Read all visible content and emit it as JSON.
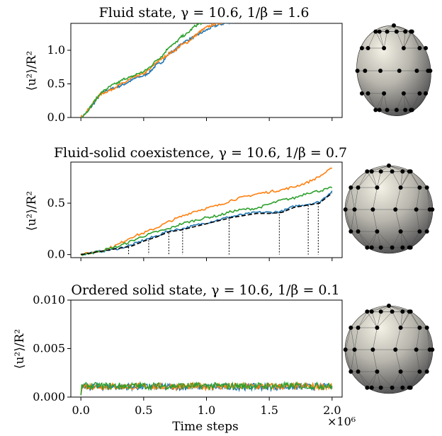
{
  "figure": {
    "xlabel": "Time steps",
    "x_multiplier": "×10⁶"
  },
  "colors": {
    "blue": "#1f77b4",
    "orange": "#ff7f0e",
    "green": "#2ca02c",
    "dashed": "#000000"
  },
  "chart_data": [
    {
      "type": "line",
      "title": "Fluid state, γ = 10.6, 1/β = 1.6",
      "xlabel": "",
      "ylabel": "⟨u²⟩/R²",
      "xlim": [
        0,
        2.0
      ],
      "ylim": [
        0,
        1.4
      ],
      "y_ticks": [
        "0.0",
        "0.5",
        "1.0"
      ],
      "y_tick_values": [
        0,
        0.5,
        1.0
      ],
      "x_tick_labels_shown": false,
      "x": [
        0,
        0.05,
        0.1,
        0.15,
        0.2,
        0.25,
        0.3,
        0.35,
        0.4,
        0.45,
        0.5,
        0.55,
        0.6,
        0.65,
        0.7,
        0.75,
        0.8,
        0.85,
        0.9,
        0.95,
        1.0,
        1.05,
        1.1,
        1.15,
        1.2,
        1.25,
        1.3
      ],
      "series": [
        {
          "color": "blue",
          "values": [
            0,
            0.08,
            0.2,
            0.33,
            0.4,
            0.43,
            0.46,
            0.5,
            0.55,
            0.6,
            0.62,
            0.68,
            0.78,
            0.83,
            0.95,
            1.0,
            1.1,
            1.15,
            1.2,
            1.25,
            1.3,
            1.35,
            1.38,
            1.4,
            1.42,
            1.45,
            1.48
          ]
        },
        {
          "color": "orange",
          "values": [
            0,
            0.1,
            0.22,
            0.34,
            0.38,
            0.42,
            0.48,
            0.52,
            0.58,
            0.62,
            0.65,
            0.72,
            0.82,
            0.88,
            0.95,
            1.0,
            1.08,
            1.12,
            1.2,
            1.28,
            1.34,
            1.38,
            1.4,
            1.42,
            1.44,
            1.46,
            1.48
          ]
        },
        {
          "color": "green",
          "values": [
            0,
            0.09,
            0.22,
            0.35,
            0.42,
            0.48,
            0.52,
            0.58,
            0.6,
            0.65,
            0.68,
            0.75,
            0.85,
            0.92,
            1.05,
            1.1,
            1.2,
            1.25,
            1.35,
            1.4,
            1.42,
            1.45,
            1.47,
            1.48,
            1.5,
            1.52,
            1.55
          ]
        }
      ]
    },
    {
      "type": "line",
      "title": "Fluid-solid coexistence, γ = 10.6, 1/β = 0.7",
      "xlabel": "",
      "ylabel": "⟨u²⟩/R²",
      "xlim": [
        0,
        2.0
      ],
      "ylim": [
        -0.03,
        0.9
      ],
      "y_ticks": [
        "0.0",
        "0.5"
      ],
      "y_tick_values": [
        0,
        0.5
      ],
      "x_tick_labels_shown": false,
      "x": [
        0,
        0.1,
        0.2,
        0.3,
        0.4,
        0.5,
        0.6,
        0.7,
        0.8,
        0.9,
        1.0,
        1.1,
        1.2,
        1.3,
        1.4,
        1.5,
        1.6,
        1.7,
        1.8,
        1.9,
        2.0
      ],
      "series": [
        {
          "color": "blue",
          "values": [
            0,
            0.02,
            0.04,
            0.06,
            0.09,
            0.14,
            0.18,
            0.23,
            0.25,
            0.28,
            0.31,
            0.34,
            0.37,
            0.39,
            0.41,
            0.41,
            0.42,
            0.47,
            0.49,
            0.51,
            0.62
          ]
        },
        {
          "color": "orange",
          "values": [
            0,
            0.02,
            0.05,
            0.1,
            0.17,
            0.21,
            0.26,
            0.32,
            0.37,
            0.42,
            0.45,
            0.48,
            0.53,
            0.56,
            0.59,
            0.61,
            0.63,
            0.66,
            0.7,
            0.76,
            0.84
          ]
        },
        {
          "color": "green",
          "values": [
            0,
            0.02,
            0.05,
            0.08,
            0.13,
            0.18,
            0.22,
            0.25,
            0.3,
            0.33,
            0.36,
            0.38,
            0.42,
            0.44,
            0.45,
            0.49,
            0.53,
            0.55,
            0.6,
            0.62,
            0.65
          ]
        },
        {
          "color": "dashed",
          "dashed": true,
          "values": [
            0,
            0.02,
            0.04,
            0.06,
            0.08,
            0.13,
            0.17,
            0.22,
            0.24,
            0.27,
            0.3,
            0.33,
            0.36,
            0.38,
            0.4,
            0.4,
            0.41,
            0.46,
            0.48,
            0.5,
            0.6
          ]
        }
      ],
      "dotted_markers_x": [
        0.38,
        0.54,
        0.7,
        0.81,
        1.18,
        1.58,
        1.81,
        1.89
      ],
      "dotted_markers_y": [
        0.1,
        0.14,
        0.21,
        0.25,
        0.37,
        0.42,
        0.48,
        0.5
      ]
    },
    {
      "type": "line",
      "title": "Ordered solid state, γ = 10.6, 1/β = 0.1",
      "xlabel": "Time steps",
      "ylabel": "⟨u²⟩/R²",
      "xlim": [
        -0.08,
        2.08
      ],
      "ylim": [
        0,
        0.01
      ],
      "y_ticks": [
        "0.000",
        "0.005",
        "0.010"
      ],
      "y_tick_values": [
        0,
        0.005,
        0.01
      ],
      "x_ticks": [
        "0.0",
        "0.5",
        "1.0",
        "1.5",
        "2.0"
      ],
      "x_tick_values": [
        0,
        0.5,
        1.0,
        1.5,
        2.0
      ],
      "series_level": 0.0011,
      "series": [
        {
          "color": "blue",
          "level": 0.00105
        },
        {
          "color": "orange",
          "level": 0.0011
        },
        {
          "color": "green",
          "level": 0.00115
        }
      ]
    }
  ]
}
